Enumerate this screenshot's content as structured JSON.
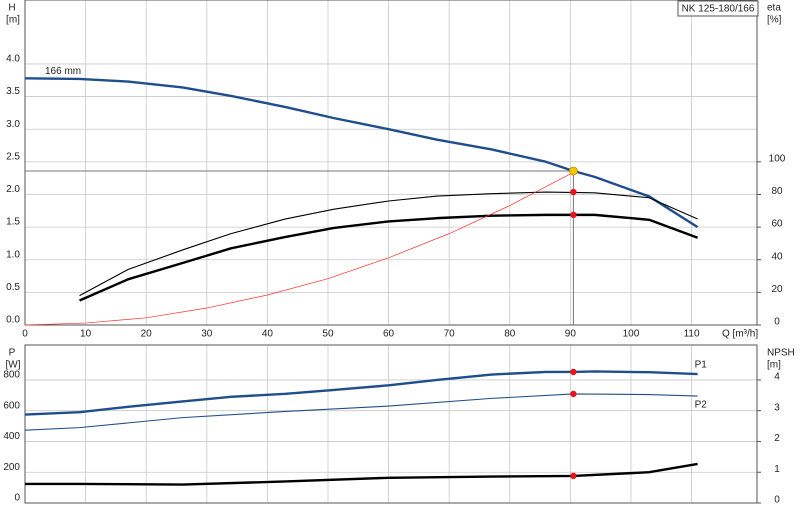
{
  "chart_data": [
    {
      "type": "line",
      "title": "NK 125-180/166",
      "ylabel": "H",
      "yunit": "[m]",
      "y2label": "eta",
      "y2unit": "[%]",
      "xlabel": "Q [m³/h]",
      "xlim": [
        0,
        120.8
      ],
      "xticks": [
        0,
        10,
        20,
        30,
        40,
        50,
        60,
        70,
        80,
        90,
        100,
        110
      ],
      "ylim": [
        0,
        4.98
      ],
      "yticks": [
        {
          "value": 0,
          "label": "0.0"
        },
        {
          "value": 0.5,
          "label": "0.5"
        },
        {
          "value": 1,
          "label": "1.0"
        },
        {
          "value": 1.5,
          "label": "1.5"
        },
        {
          "value": 2,
          "label": "2.0"
        },
        {
          "value": 2.5,
          "label": "2.5"
        },
        {
          "value": 3,
          "label": "3.0"
        },
        {
          "value": 3.5,
          "label": "3.5"
        },
        {
          "value": 4,
          "label": "4.0"
        }
      ],
      "y2lim": [
        0,
        199.2
      ],
      "y2ticks": [
        0,
        20,
        40,
        60,
        80,
        100
      ],
      "grid": true,
      "series": [
        {
          "name": "166 mm",
          "color": "#1f4e8c",
          "style": "thick",
          "x": [
            0,
            9,
            17,
            26,
            34,
            43,
            51,
            60,
            68,
            77,
            86,
            90.5,
            94,
            103,
            111
          ],
          "values": [
            3.78,
            3.77,
            3.73,
            3.64,
            3.51,
            3.34,
            3.17,
            3.0,
            2.84,
            2.69,
            2.5,
            2.36,
            2.27,
            1.97,
            1.5
          ]
        },
        {
          "color": "#000000",
          "style": "thin",
          "axis": "y2",
          "x": [
            9,
            17,
            26,
            34,
            43,
            51,
            60,
            68,
            77,
            86,
            94,
            103,
            111
          ],
          "values": [
            18,
            34,
            46,
            56,
            65,
            71,
            76,
            79,
            80.5,
            81.5,
            81,
            78,
            65
          ]
        },
        {
          "color": "#000000",
          "style": "thick",
          "axis": "y2",
          "x": [
            9,
            17,
            26,
            34,
            43,
            51,
            60,
            68,
            77,
            86,
            94,
            103,
            111
          ],
          "values": [
            15,
            28,
            38,
            47,
            54,
            59.5,
            63.5,
            65.5,
            67,
            67.5,
            67.5,
            64.5,
            53.5
          ]
        },
        {
          "color": "#ff3030",
          "style": "hair",
          "x": [
            0,
            10,
            20,
            30,
            40,
            50,
            60,
            70,
            80,
            90.5
          ],
          "values": [
            0,
            0.03,
            0.11,
            0.26,
            0.46,
            0.71,
            1.03,
            1.4,
            1.83,
            2.34
          ]
        }
      ],
      "markers": [
        {
          "x": 90.5,
          "y": 2.36,
          "color": "#f5c400",
          "crosshair": true
        },
        {
          "x": 90.5,
          "y": 81.5,
          "color": "#e8141b",
          "axis": "y2"
        },
        {
          "x": 90.5,
          "y": 67.5,
          "color": "#e8141b",
          "axis": "y2"
        }
      ]
    },
    {
      "type": "line",
      "ylabel": "P",
      "yunit": "[W]",
      "y2label": "NPSH",
      "y2unit": "[m]",
      "xlim": [
        0,
        120.8
      ],
      "xticks": [
        0,
        10,
        20,
        30,
        40,
        50,
        60,
        70,
        80,
        90,
        100,
        110
      ],
      "ylim": [
        0,
        1027
      ],
      "yticks": [
        0,
        200,
        400,
        600,
        800
      ],
      "y2lim": [
        0,
        5.135
      ],
      "y2ticks": [
        0,
        1,
        2,
        3,
        4
      ],
      "grid": true,
      "series": [
        {
          "name": "P1",
          "color": "#1f4e8c",
          "style": "thick",
          "x": [
            0,
            9,
            17,
            26,
            34,
            43,
            51,
            60,
            68,
            77,
            86,
            90.5,
            94,
            103,
            111
          ],
          "values": [
            575,
            590,
            625,
            660,
            690,
            710,
            735,
            765,
            800,
            835,
            852,
            852,
            855,
            850,
            838
          ]
        },
        {
          "name": "P2",
          "color": "#1f4e8c",
          "style": "thin",
          "x": [
            0,
            9,
            26,
            43,
            60,
            77,
            90.5,
            103,
            111
          ],
          "values": [
            473,
            490,
            555,
            595,
            630,
            680,
            709,
            705,
            695
          ]
        },
        {
          "color": "#000000",
          "style": "thick",
          "axis": "y2",
          "x": [
            0,
            9,
            26,
            43,
            60,
            77,
            90.5,
            103,
            111
          ],
          "values": [
            0.62,
            0.62,
            0.6,
            0.7,
            0.82,
            0.86,
            0.88,
            1.0,
            1.27
          ]
        }
      ],
      "markers": [
        {
          "x": 90.5,
          "y": 852,
          "color": "#e8141b"
        },
        {
          "x": 90.5,
          "y": 709,
          "color": "#e8141b"
        },
        {
          "x": 90.5,
          "y": 0.88,
          "color": "#e8141b",
          "axis": "y2"
        }
      ]
    }
  ]
}
